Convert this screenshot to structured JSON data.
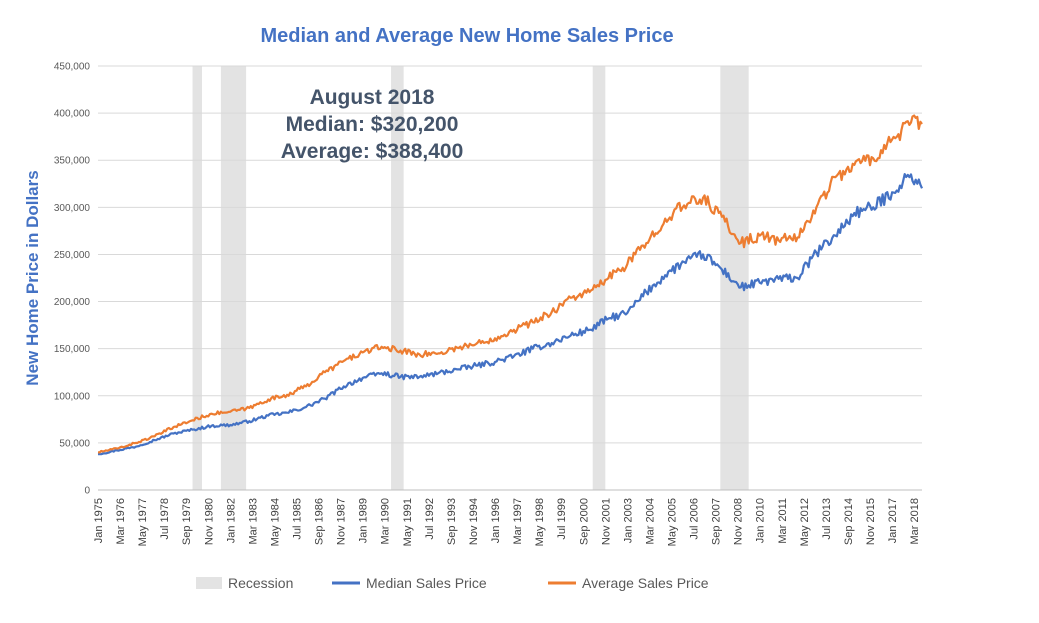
{
  "chart_data": {
    "type": "line",
    "title": "Median and Average New Home Sales Price",
    "ylabel": "New Home Price in Dollars",
    "xlabel": "",
    "ylim": [
      0,
      450000
    ],
    "yticks": [
      0,
      50000,
      100000,
      150000,
      200000,
      250000,
      300000,
      350000,
      400000,
      450000
    ],
    "ytick_labels": [
      "0",
      "50,000",
      "100,000",
      "150,000",
      "200,000",
      "250,000",
      "300,000",
      "350,000",
      "400,000",
      "450,000"
    ],
    "xlim": [
      "Jan 1975",
      "Aug 2018"
    ],
    "xtick_labels": [
      "Jan 1975",
      "Mar 1976",
      "May 1977",
      "Jul 1978",
      "Sep 1979",
      "Nov 1980",
      "Jan 1982",
      "Mar 1983",
      "May 1984",
      "Jul 1985",
      "Sep 1986",
      "Nov 1987",
      "Jan 1989",
      "Mar 1990",
      "May 1991",
      "Jul 1992",
      "Sep 1993",
      "Nov 1994",
      "Jan 1996",
      "Mar 1997",
      "May 1998",
      "Jul 1999",
      "Sep 2000",
      "Nov 2001",
      "Jan 2003",
      "Mar 2004",
      "May 2005",
      "Jul 2006",
      "Sep 2007",
      "Nov 2008",
      "Jan 2010",
      "Mar 2011",
      "May 2012",
      "Jul 2013",
      "Sep 2014",
      "Nov 2015",
      "Jan 2017",
      "Mar 2018"
    ],
    "grid": "horizontal",
    "legend_position": "bottom",
    "recessions": [
      {
        "start": "Jan 1980",
        "end": "Jul 1980"
      },
      {
        "start": "Jul 1981",
        "end": "Nov 1982"
      },
      {
        "start": "Jul 1990",
        "end": "Mar 1991"
      },
      {
        "start": "Mar 2001",
        "end": "Nov 2001"
      },
      {
        "start": "Dec 2007",
        "end": "Jun 2009"
      }
    ],
    "recession_label": "Recession",
    "recession_color": "#e3e3e3",
    "series": [
      {
        "name": "Median Sales Price",
        "color": "#4472c4",
        "points": [
          [
            "Jan 1975",
            38000
          ],
          [
            "Jan 1976",
            42000
          ],
          [
            "Jan 1977",
            46000
          ],
          [
            "Jan 1978",
            53000
          ],
          [
            "Jan 1979",
            60000
          ],
          [
            "Jan 1980",
            64000
          ],
          [
            "Jan 1981",
            68000
          ],
          [
            "Jan 1982",
            69000
          ],
          [
            "Jan 1983",
            73000
          ],
          [
            "Jan 1984",
            79000
          ],
          [
            "Jan 1985",
            82000
          ],
          [
            "Jan 1986",
            88000
          ],
          [
            "Jan 1987",
            97000
          ],
          [
            "Jan 1988",
            110000
          ],
          [
            "Jan 1989",
            119000
          ],
          [
            "Jan 1990",
            124000
          ],
          [
            "Jan 1991",
            120000
          ],
          [
            "Jan 1992",
            120000
          ],
          [
            "Jan 1993",
            124000
          ],
          [
            "Jan 1994",
            128000
          ],
          [
            "Jan 1995",
            132000
          ],
          [
            "Jan 1996",
            136000
          ],
          [
            "Jan 1997",
            142000
          ],
          [
            "Jan 1998",
            150000
          ],
          [
            "Jan 1999",
            156000
          ],
          [
            "Jan 2000",
            164000
          ],
          [
            "Jan 2001",
            170000
          ],
          [
            "Jan 2002",
            182000
          ],
          [
            "Jan 2003",
            188000
          ],
          [
            "Jan 2004",
            210000
          ],
          [
            "Jan 2005",
            228000
          ],
          [
            "Jan 2006",
            242000
          ],
          [
            "Jan 2007",
            250000
          ],
          [
            "Jan 2008",
            234000
          ],
          [
            "Jan 2009",
            215000
          ],
          [
            "Jan 2010",
            220000
          ],
          [
            "Jan 2011",
            224000
          ],
          [
            "Jan 2012",
            225000
          ],
          [
            "Jan 2013",
            252000
          ],
          [
            "Jan 2014",
            270000
          ],
          [
            "Jan 2015",
            294000
          ],
          [
            "Jan 2016",
            300000
          ],
          [
            "Jan 2017",
            316000
          ],
          [
            "Jan 2018",
            335000
          ],
          [
            "Aug 2018",
            320200
          ]
        ]
      },
      {
        "name": "Average Sales Price",
        "color": "#ed7d31",
        "points": [
          [
            "Jan 1975",
            40000
          ],
          [
            "Jan 1976",
            44000
          ],
          [
            "Jan 1977",
            50000
          ],
          [
            "Jan 1978",
            57000
          ],
          [
            "Jan 1979",
            67000
          ],
          [
            "Jan 1980",
            74000
          ],
          [
            "Jan 1981",
            81000
          ],
          [
            "Jan 1982",
            83000
          ],
          [
            "Jan 1983",
            87000
          ],
          [
            "Jan 1984",
            96000
          ],
          [
            "Jan 1985",
            101000
          ],
          [
            "Jan 1986",
            110000
          ],
          [
            "Jan 1987",
            125000
          ],
          [
            "Jan 1988",
            137000
          ],
          [
            "Jan 1989",
            146000
          ],
          [
            "Jan 1990",
            152000
          ],
          [
            "Jan 1991",
            148000
          ],
          [
            "Jan 1992",
            144000
          ],
          [
            "Jan 1993",
            145000
          ],
          [
            "Jan 1994",
            151000
          ],
          [
            "Jan 1995",
            155000
          ],
          [
            "Jan 1996",
            161000
          ],
          [
            "Jan 1997",
            170000
          ],
          [
            "Jan 1998",
            178000
          ],
          [
            "Jan 1999",
            189000
          ],
          [
            "Jan 2000",
            204000
          ],
          [
            "Jan 2001",
            210000
          ],
          [
            "Jan 2002",
            225000
          ],
          [
            "Jan 2003",
            240000
          ],
          [
            "Jan 2004",
            262000
          ],
          [
            "Jan 2005",
            288000
          ],
          [
            "Jan 2006",
            302000
          ],
          [
            "Jan 2007",
            310000
          ],
          [
            "Jan 2008",
            290000
          ],
          [
            "Jan 2009",
            262000
          ],
          [
            "Jan 2010",
            270000
          ],
          [
            "Jan 2011",
            265000
          ],
          [
            "Jan 2012",
            268000
          ],
          [
            "Jan 2013",
            300000
          ],
          [
            "Jan 2014",
            332000
          ],
          [
            "Jan 2015",
            345000
          ],
          [
            "Jan 2016",
            352000
          ],
          [
            "Jan 2017",
            372000
          ],
          [
            "Jan 2018",
            390000
          ],
          [
            "Aug 2018",
            388400
          ]
        ]
      }
    ],
    "annotation": [
      "August 2018",
      "Median:  $320,200",
      "Average: $388,400"
    ]
  }
}
